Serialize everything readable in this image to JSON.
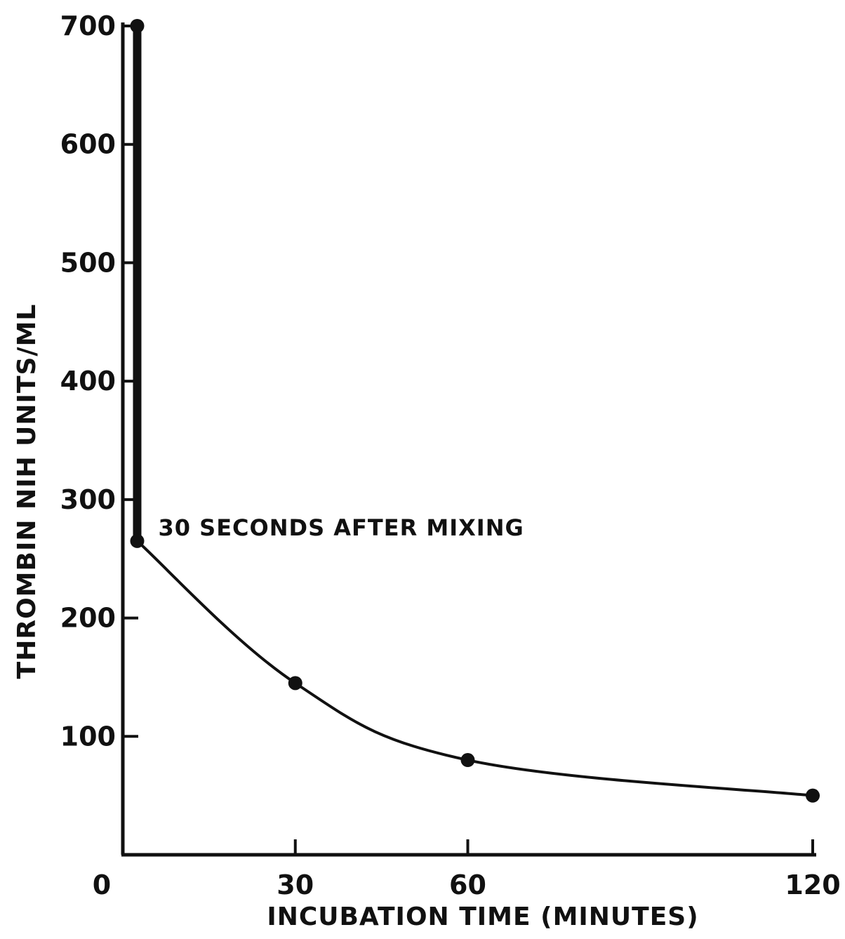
{
  "chart_data": {
    "type": "line",
    "xlabel": "INCUBATION TIME (MINUTES)",
    "ylabel": "THROMBIN NIH UNITS/ML",
    "xlim": [
      0,
      120
    ],
    "ylim": [
      0,
      700
    ],
    "xticks": [
      0,
      30,
      60,
      120
    ],
    "xtick_labels": [
      "0",
      "30",
      "60",
      "120"
    ],
    "yticks": [
      100,
      200,
      300,
      400,
      500,
      600,
      700
    ],
    "ytick_labels": [
      "100",
      "200",
      "300",
      "400",
      "500",
      "600",
      "700"
    ],
    "series": [
      {
        "x": [
          2.5,
          2.5,
          30,
          60,
          120
        ],
        "y": [
          700,
          265,
          145,
          80,
          50
        ]
      }
    ],
    "annotations": [
      {
        "text": "30 SECONDS AFTER MIXING",
        "x": 2.5,
        "y": 265
      }
    ],
    "grid": false,
    "color": "#111111"
  }
}
